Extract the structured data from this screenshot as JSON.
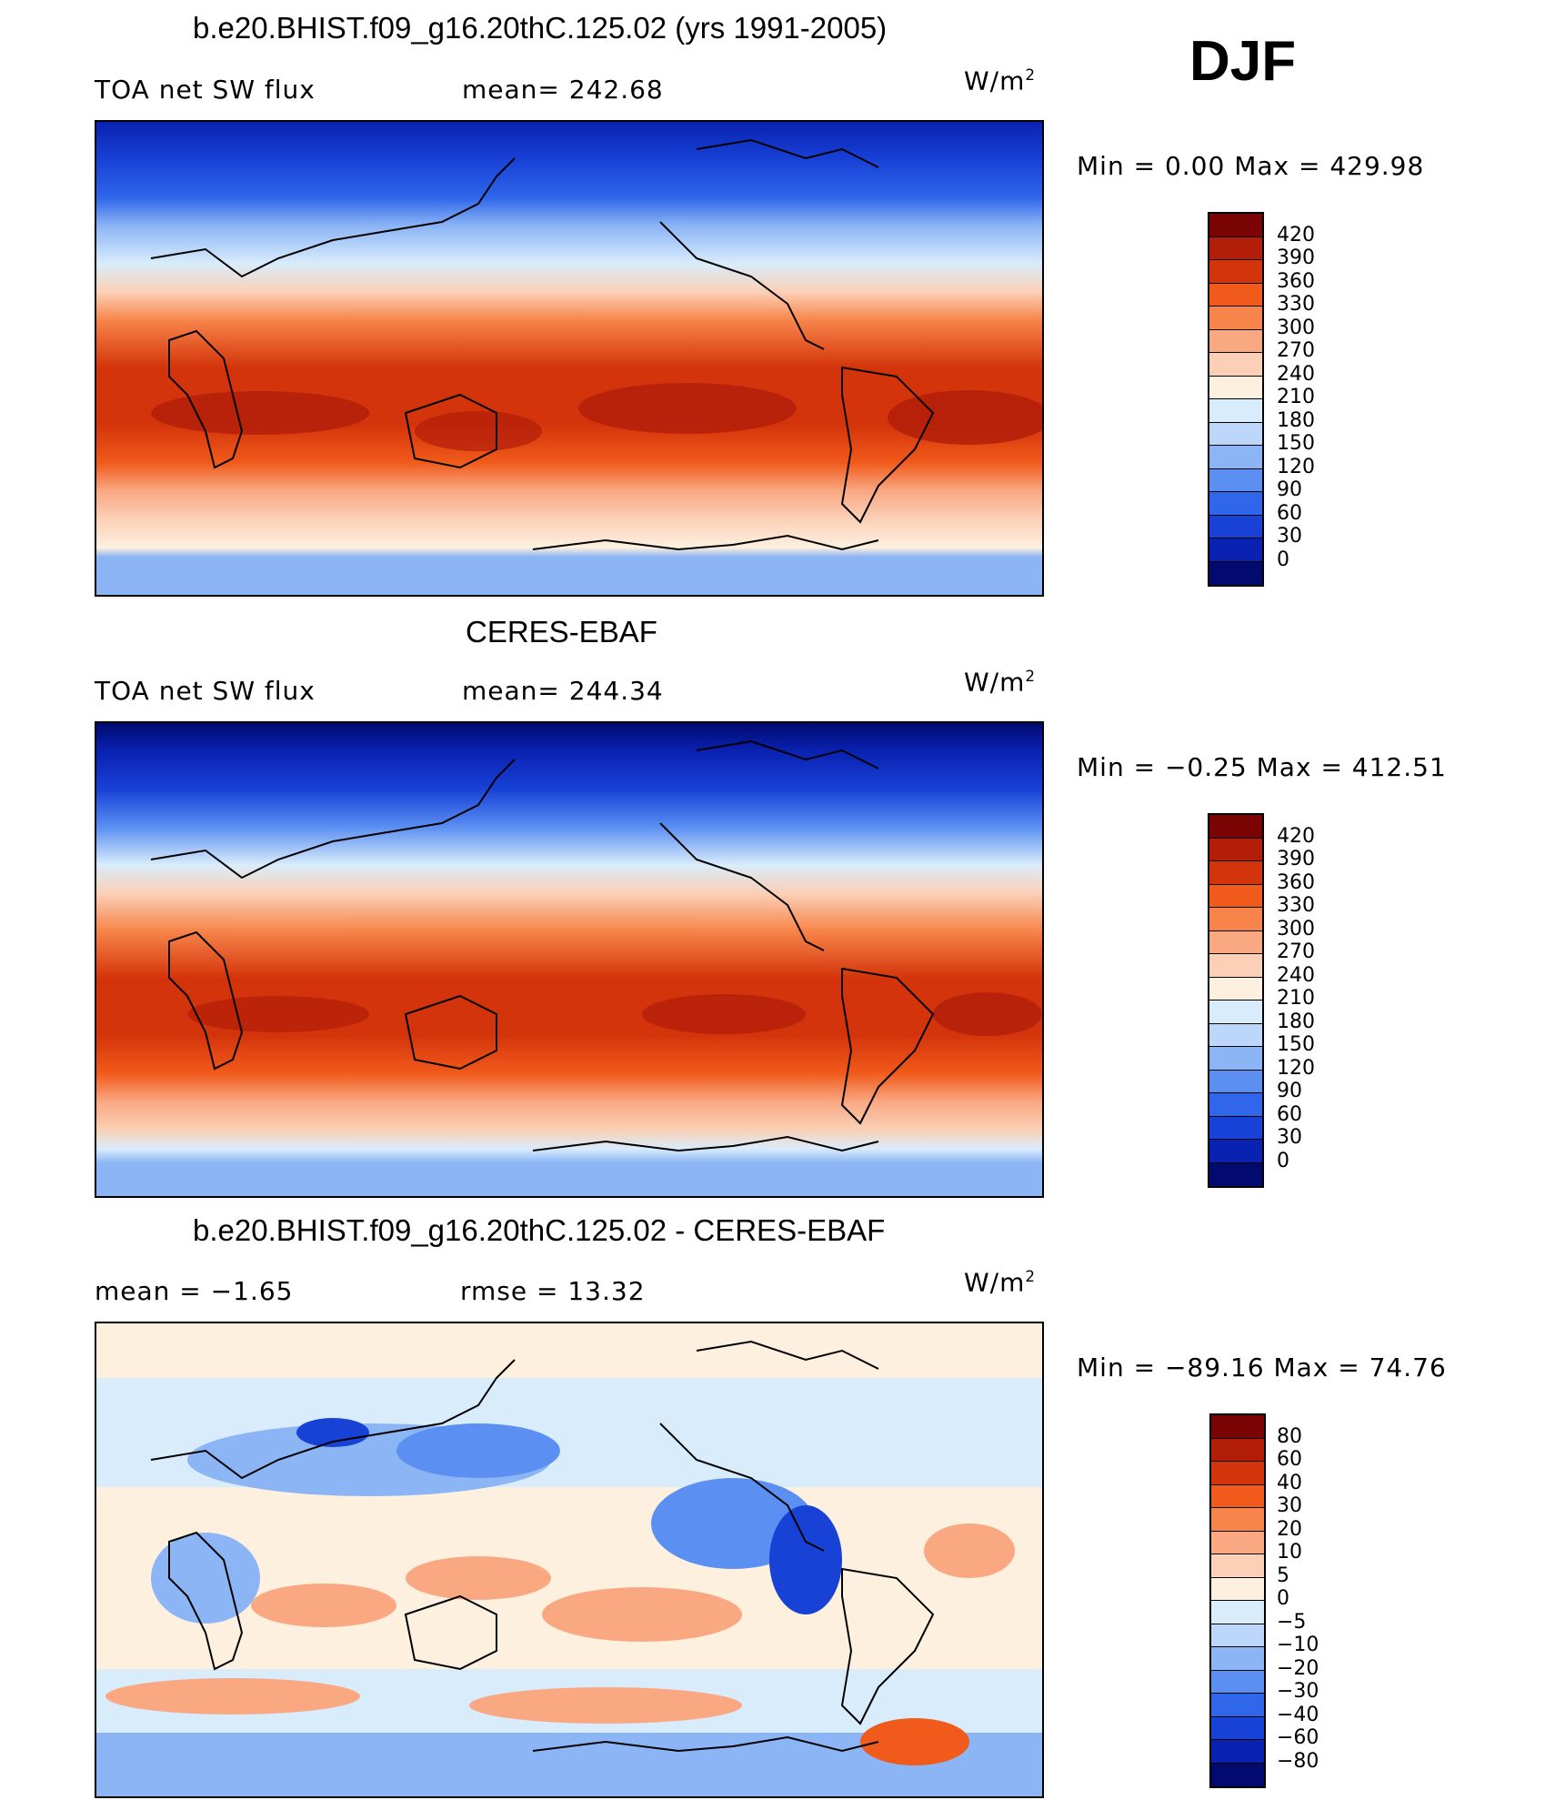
{
  "season": "DJF",
  "units": "W/m",
  "units_sup": "2",
  "panels": [
    {
      "title": "b.e20.BHIST.f09_g16.20thC.125.02 (yrs 1991-2005)",
      "left_label": "TOA net SW flux",
      "mid_label": "mean= 242.68",
      "minmax": "Min =    0.00 Max = 429.98",
      "colorbar_labels": [
        "420",
        "390",
        "360",
        "330",
        "300",
        "270",
        "240",
        "210",
        "180",
        "150",
        "120",
        "90",
        "60",
        "30",
        "0"
      ]
    },
    {
      "title": "CERES-EBAF",
      "left_label": "TOA net SW flux",
      "mid_label": "mean= 244.34",
      "minmax": "Min =  −0.25 Max = 412.51",
      "colorbar_labels": [
        "420",
        "390",
        "360",
        "330",
        "300",
        "270",
        "240",
        "210",
        "180",
        "150",
        "120",
        "90",
        "60",
        "30",
        "0"
      ]
    },
    {
      "title": "b.e20.BHIST.f09_g16.20thC.125.02 - CERES-EBAF",
      "left_label": "mean =   −1.65",
      "mid_label": "rmse =    13.32",
      "minmax": "Min = −89.16 Max =   74.76",
      "colorbar_labels": [
        "80",
        "60",
        "40",
        "30",
        "20",
        "10",
        "5",
        "0",
        "−5",
        "−10",
        "−20",
        "−30",
        "−40",
        "−60",
        "−80"
      ]
    }
  ],
  "colors": {
    "abs_scale": [
      "#7a0403",
      "#b21e0a",
      "#d4340b",
      "#f05a1a",
      "#f7844a",
      "#f9a882",
      "#fbd0b6",
      "#fdf0df",
      "#d9ecfb",
      "#bcd7fa",
      "#8cb5f6",
      "#5b8ff2",
      "#2f66ea",
      "#1841d6",
      "#0a22b2",
      "#020a70"
    ],
    "diff_scale": [
      "#7a0403",
      "#b21e0a",
      "#d4340b",
      "#f05a1a",
      "#f7844a",
      "#f9a882",
      "#fbd0b6",
      "#fdf0df",
      "#d9ecfb",
      "#bcd7fa",
      "#8cb5f6",
      "#5b8ff2",
      "#2f66ea",
      "#1841d6",
      "#0a22b2",
      "#020a70"
    ]
  }
}
